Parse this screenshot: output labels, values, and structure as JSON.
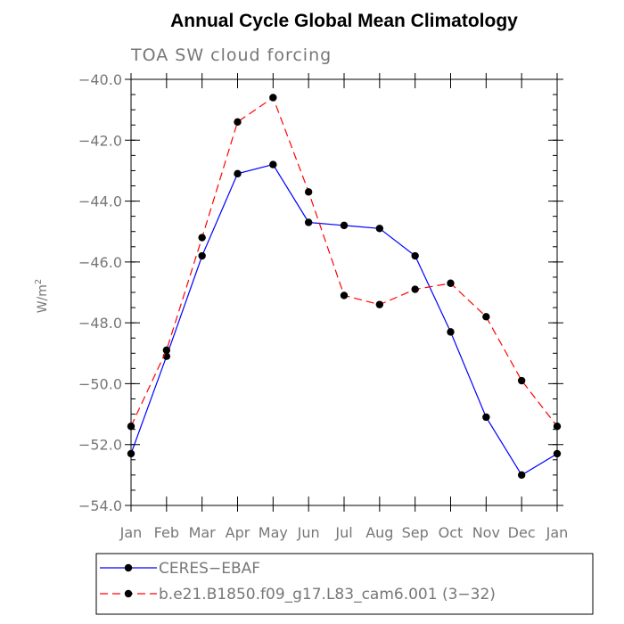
{
  "chart_data": {
    "type": "line",
    "title": "Annual Cycle Global Mean Climatology",
    "subtitle": "TOA SW cloud forcing",
    "ylabel_base": "W/m",
    "ylabel_sup": "2",
    "xlabel": "",
    "categories": [
      "Jan",
      "Feb",
      "Mar",
      "Apr",
      "May",
      "Jun",
      "Jul",
      "Aug",
      "Sep",
      "Oct",
      "Nov",
      "Dec",
      "Jan"
    ],
    "ylim": [
      -54.0,
      -40.0
    ],
    "yticks": [
      -54.0,
      -52.0,
      -50.0,
      -48.0,
      -46.0,
      -44.0,
      -42.0,
      -40.0
    ],
    "ytick_labels": [
      "−54.0",
      "−52.0",
      "−50.0",
      "−48.0",
      "−46.0",
      "−44.0",
      "−42.0",
      "−40.0"
    ],
    "series": [
      {
        "name": "CERES−EBAF",
        "color": "#0000ff",
        "dash": "solid",
        "values": [
          -52.3,
          -49.1,
          -45.8,
          -43.1,
          -42.8,
          -44.7,
          -44.8,
          -44.9,
          -45.8,
          -48.3,
          -51.1,
          -53.0,
          -52.3
        ]
      },
      {
        "name": "b.e21.B1850.f09_g17.L83_cam6.001 (3−32)",
        "color": "#ff0000",
        "dash": "dashed",
        "values": [
          -51.4,
          -48.9,
          -45.2,
          -41.4,
          -40.6,
          -43.7,
          -47.1,
          -47.4,
          -46.9,
          -46.7,
          -47.8,
          -49.9,
          -51.4
        ]
      }
    ],
    "marker_color": "#000000",
    "grid": false,
    "legend_position": "bottom"
  }
}
